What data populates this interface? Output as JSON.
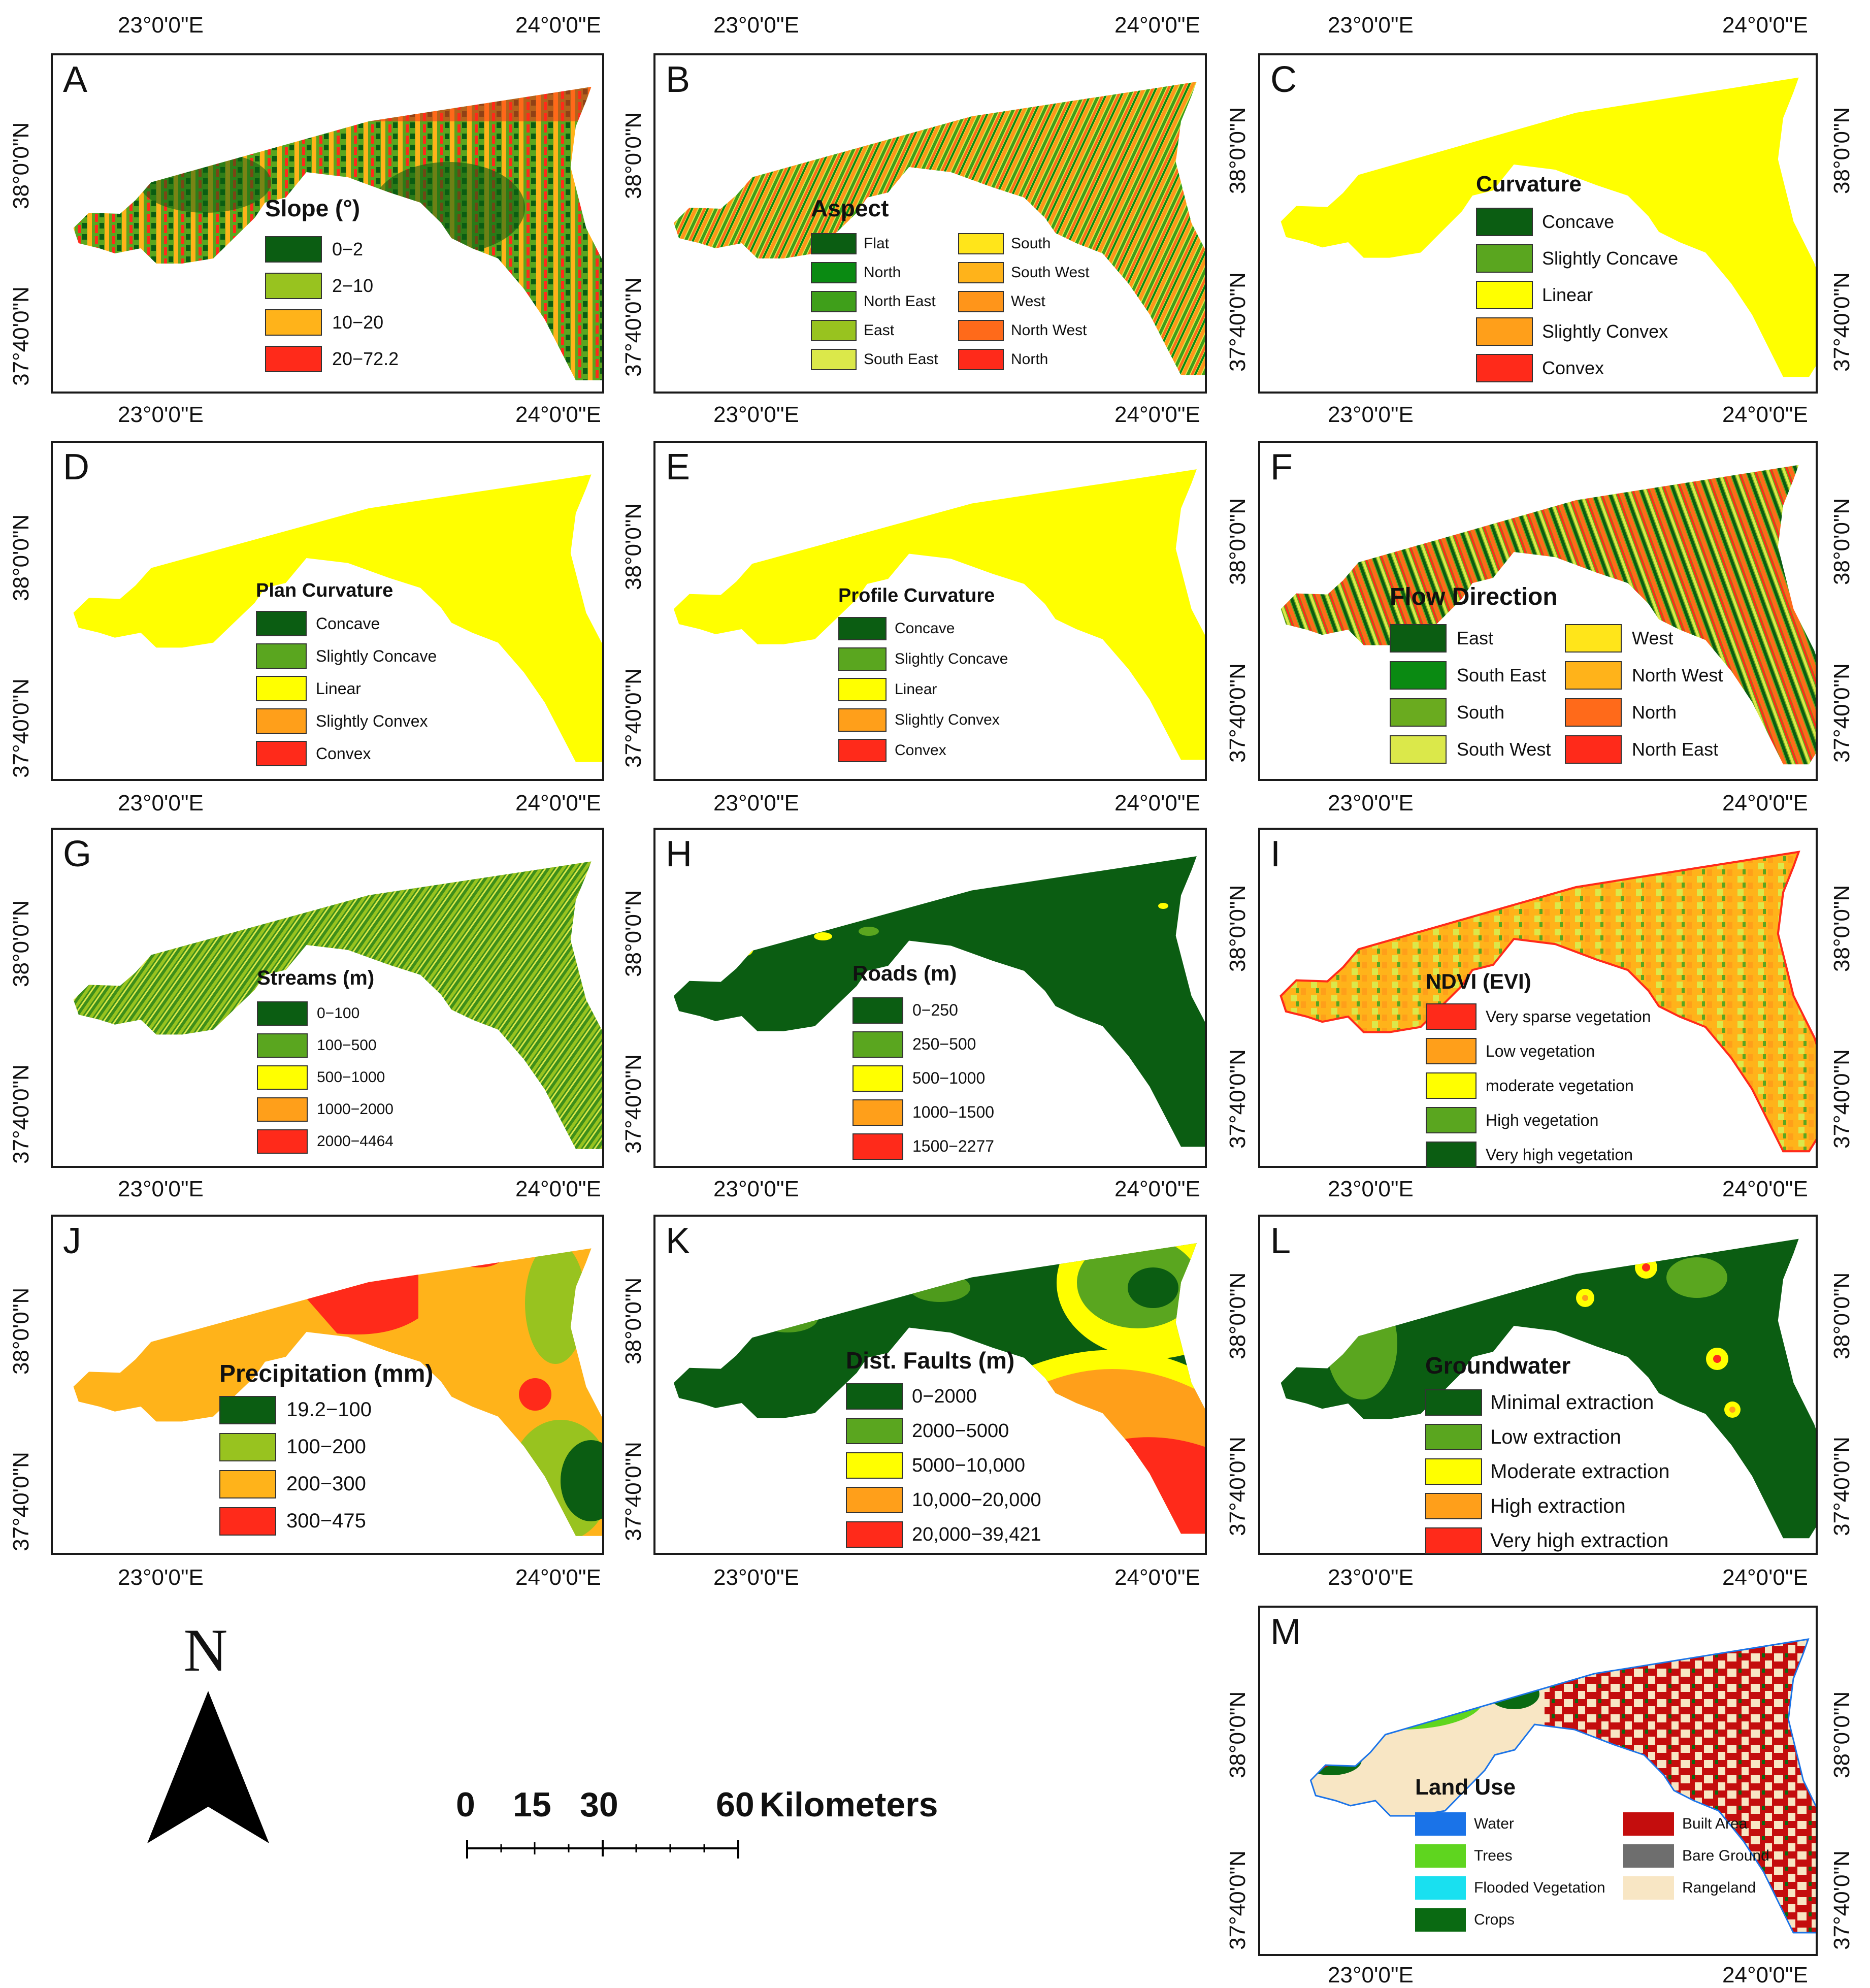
{
  "coords": {
    "lon_left": "23°0'0\"E",
    "lon_right": "24°0'0\"E",
    "lat_top": "38°0'0\"N",
    "lat_bottom": "37°40'0\"N"
  },
  "colors": {
    "dark_green": "#0b5d12",
    "green": "#5aa61f",
    "light_green": "#98c31f",
    "yellow": "#ffff00",
    "orange": "#ff9f1a",
    "red": "#ff2a1a",
    "border": "#1a1a1a"
  },
  "panels": [
    {
      "id": "A",
      "title": "Slope (°)",
      "items": [
        {
          "label": "0−2",
          "color": "#0b5d12"
        },
        {
          "label": "2−10",
          "color": "#98c31f"
        },
        {
          "label": "10−20",
          "color": "#ffb31a"
        },
        {
          "label": "20−72.2",
          "color": "#ff2a1a"
        }
      ]
    },
    {
      "id": "B",
      "title": "Aspect",
      "items": [
        {
          "label": "Flat",
          "color": "#0b5d12"
        },
        {
          "label": "North",
          "color": "#0a8a12"
        },
        {
          "label": "North East",
          "color": "#3f9f1a"
        },
        {
          "label": "East",
          "color": "#98c31f"
        },
        {
          "label": "South East",
          "color": "#dbe84a"
        },
        {
          "label": "South",
          "color": "#ffe51a"
        },
        {
          "label": "South West",
          "color": "#ffb31a"
        },
        {
          "label": "West",
          "color": "#ff951a"
        },
        {
          "label": "North West",
          "color": "#ff6a1a"
        },
        {
          "label": "North",
          "color": "#ff2a1a"
        }
      ]
    },
    {
      "id": "C",
      "title": "Curvature",
      "items": [
        {
          "label": "Concave",
          "color": "#0b5d12"
        },
        {
          "label": "Slightly Concave",
          "color": "#5aa61f"
        },
        {
          "label": "Linear",
          "color": "#ffff00"
        },
        {
          "label": "Slightly Convex",
          "color": "#ff9f1a"
        },
        {
          "label": "Convex",
          "color": "#ff2a1a"
        }
      ]
    },
    {
      "id": "D",
      "title": "Plan Curvature",
      "items": [
        {
          "label": "Concave",
          "color": "#0b5d12"
        },
        {
          "label": "Slightly Concave",
          "color": "#5aa61f"
        },
        {
          "label": "Linear",
          "color": "#ffff00"
        },
        {
          "label": "Slightly Convex",
          "color": "#ff9f1a"
        },
        {
          "label": "Convex",
          "color": "#ff2a1a"
        }
      ]
    },
    {
      "id": "E",
      "title": "Profile Curvature",
      "items": [
        {
          "label": "Concave",
          "color": "#0b5d12"
        },
        {
          "label": "Slightly Concave",
          "color": "#5aa61f"
        },
        {
          "label": "Linear",
          "color": "#ffff00"
        },
        {
          "label": "Slightly Convex",
          "color": "#ff9f1a"
        },
        {
          "label": "Convex",
          "color": "#ff2a1a"
        }
      ]
    },
    {
      "id": "F",
      "title": "Flow Direction",
      "items": [
        {
          "label": "East",
          "color": "#0b5d12"
        },
        {
          "label": "South East",
          "color": "#0a8a12"
        },
        {
          "label": "South",
          "color": "#6aab1f"
        },
        {
          "label": "South West",
          "color": "#dbe84a"
        },
        {
          "label": "West",
          "color": "#ffe51a"
        },
        {
          "label": "North West",
          "color": "#ffb31a"
        },
        {
          "label": "North",
          "color": "#ff6a1a"
        },
        {
          "label": "North East",
          "color": "#ff2a1a"
        }
      ]
    },
    {
      "id": "G",
      "title": "Streams (m)",
      "items": [
        {
          "label": "0−100",
          "color": "#0b5d12"
        },
        {
          "label": "100−500",
          "color": "#5aa61f"
        },
        {
          "label": "500−1000",
          "color": "#ffff00"
        },
        {
          "label": "1000−2000",
          "color": "#ff9f1a"
        },
        {
          "label": "2000−4464",
          "color": "#ff2a1a"
        }
      ]
    },
    {
      "id": "H",
      "title": "Roads (m)",
      "items": [
        {
          "label": "0−250",
          "color": "#0b5d12"
        },
        {
          "label": "250−500",
          "color": "#5aa61f"
        },
        {
          "label": "500−1000",
          "color": "#ffff00"
        },
        {
          "label": "1000−1500",
          "color": "#ff9f1a"
        },
        {
          "label": "1500−2277",
          "color": "#ff2a1a"
        }
      ]
    },
    {
      "id": "I",
      "title": "NDVI (EVI)",
      "items": [
        {
          "label": "Very sparse vegetation",
          "color": "#ff2a1a"
        },
        {
          "label": "Low vegetation",
          "color": "#ff9f1a"
        },
        {
          "label": "moderate vegetation",
          "color": "#ffff00"
        },
        {
          "label": "High vegetation",
          "color": "#5aa61f"
        },
        {
          "label": "Very high vegetation",
          "color": "#0b5d12"
        }
      ]
    },
    {
      "id": "J",
      "title": "Precipitation (mm)",
      "items": [
        {
          "label": "19.2−100",
          "color": "#0b5d12"
        },
        {
          "label": "100−200",
          "color": "#98c31f"
        },
        {
          "label": "200−300",
          "color": "#ffb31a"
        },
        {
          "label": "300−475",
          "color": "#ff2a1a"
        }
      ]
    },
    {
      "id": "K",
      "title": "Dist. Faults (m)",
      "items": [
        {
          "label": "0−2000",
          "color": "#0b5d12"
        },
        {
          "label": "2000−5000",
          "color": "#5aa61f"
        },
        {
          "label": "5000−10,000",
          "color": "#ffff00"
        },
        {
          "label": "10,000−20,000",
          "color": "#ff9f1a"
        },
        {
          "label": "20,000−39,421",
          "color": "#ff2a1a"
        }
      ]
    },
    {
      "id": "L",
      "title": "Groundwater",
      "items": [
        {
          "label": "Minimal extraction",
          "color": "#0b5d12"
        },
        {
          "label": "Low extraction",
          "color": "#5aa61f"
        },
        {
          "label": "Moderate extraction",
          "color": "#ffff00"
        },
        {
          "label": "High extraction",
          "color": "#ff9f1a"
        },
        {
          "label": "Very high extraction",
          "color": "#ff2a1a"
        }
      ]
    },
    {
      "id": "M",
      "title": "Land Use",
      "items": [
        {
          "label": "Water",
          "color": "#1a73e8"
        },
        {
          "label": "Trees",
          "color": "#5fd51f"
        },
        {
          "label": "Flooded Vegetation",
          "color": "#19e0f0"
        },
        {
          "label": "Crops",
          "color": "#0a6a12"
        },
        {
          "label": "Built Area",
          "color": "#c40d0d"
        },
        {
          "label": "Bare Ground",
          "color": "#6e6e6e"
        },
        {
          "label": "Rangeland",
          "color": "#f8e6c4"
        }
      ]
    }
  ],
  "north_arrow": {
    "label": "N"
  },
  "scale_bar": {
    "ticks": [
      "0",
      "15",
      "30",
      "60"
    ],
    "unit": "Kilometers"
  }
}
